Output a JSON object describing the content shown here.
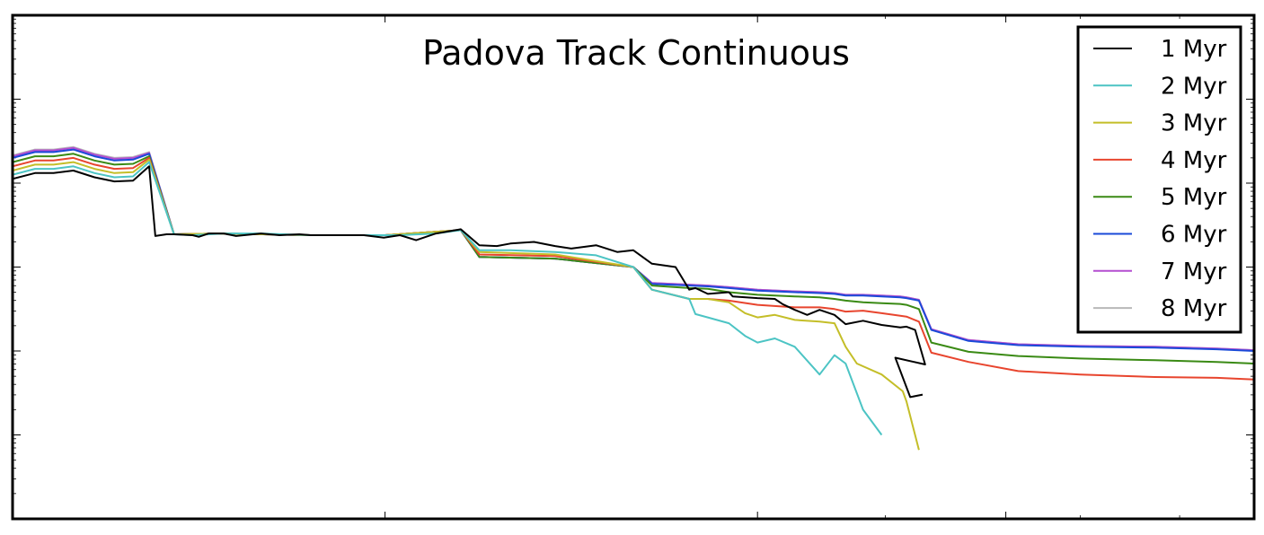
{
  "chart_data": {
    "type": "line",
    "title": "Padova Track Continuous",
    "xlabel": "",
    "ylabel": "",
    "yscale": "log",
    "ylim_decades": [
      0,
      6
    ],
    "xlim": [
      0,
      1
    ],
    "grid": false,
    "legend_position": "top-right",
    "series": [
      {
        "name": "1 Myr",
        "color": "#000000",
        "x": [
          0.0,
          0.018,
          0.033,
          0.049,
          0.066,
          0.082,
          0.097,
          0.11,
          0.115,
          0.124,
          0.13,
          0.145,
          0.15,
          0.158,
          0.17,
          0.18,
          0.2,
          0.215,
          0.231,
          0.24,
          0.25,
          0.283,
          0.299,
          0.312,
          0.325,
          0.341,
          0.361,
          0.376,
          0.39,
          0.401,
          0.42,
          0.437,
          0.45,
          0.47,
          0.487,
          0.5,
          0.515,
          0.534,
          0.545,
          0.55,
          0.56,
          0.577,
          0.58,
          0.6,
          0.614,
          0.62,
          0.63,
          0.64,
          0.65,
          0.662,
          0.671,
          0.685,
          0.7,
          0.715,
          0.72,
          0.727,
          0.735,
          0.711,
          0.723,
          0.733
        ],
        "y": [
          4.05,
          4.12,
          4.12,
          4.15,
          4.07,
          4.02,
          4.03,
          4.2,
          3.37,
          3.39,
          3.39,
          3.38,
          3.36,
          3.4,
          3.4,
          3.37,
          3.4,
          3.38,
          3.39,
          3.38,
          3.38,
          3.38,
          3.35,
          3.38,
          3.32,
          3.4,
          3.45,
          3.26,
          3.25,
          3.28,
          3.3,
          3.25,
          3.22,
          3.26,
          3.18,
          3.2,
          3.04,
          3.0,
          2.73,
          2.75,
          2.68,
          2.7,
          2.65,
          2.63,
          2.62,
          2.56,
          2.49,
          2.43,
          2.49,
          2.43,
          2.32,
          2.36,
          2.31,
          2.28,
          2.29,
          2.25,
          1.84,
          1.92,
          1.45,
          1.48
        ],
        "_note": ""
      },
      {
        "name": "2 Myr",
        "color": "#4cc4c4",
        "x": [
          0.0,
          0.018,
          0.033,
          0.049,
          0.066,
          0.082,
          0.097,
          0.11,
          0.13,
          0.145,
          0.17,
          0.2,
          0.24,
          0.283,
          0.312,
          0.341,
          0.361,
          0.376,
          0.401,
          0.437,
          0.47,
          0.5,
          0.515,
          0.545,
          0.55,
          0.56,
          0.577,
          0.59,
          0.6,
          0.614,
          0.63,
          0.65,
          0.662,
          0.671,
          0.685,
          0.7
        ],
        "y": [
          4.1,
          4.17,
          4.17,
          4.2,
          4.12,
          4.07,
          4.08,
          4.25,
          3.39,
          3.38,
          3.4,
          3.4,
          3.38,
          3.38,
          3.38,
          3.4,
          3.44,
          3.2,
          3.2,
          3.18,
          3.14,
          3.0,
          2.73,
          2.62,
          2.44,
          2.4,
          2.33,
          2.18,
          2.1,
          2.15,
          2.05,
          1.72,
          1.95,
          1.85,
          1.3,
          1.0
        ],
        "_note": ""
      },
      {
        "name": "3 Myr",
        "color": "#c4be28",
        "x": [
          0.0,
          0.018,
          0.033,
          0.049,
          0.066,
          0.082,
          0.097,
          0.11,
          0.13,
          0.17,
          0.24,
          0.3,
          0.361,
          0.376,
          0.437,
          0.5,
          0.515,
          0.545,
          0.56,
          0.577,
          0.59,
          0.6,
          0.614,
          0.63,
          0.65,
          0.662,
          0.671,
          0.68,
          0.7,
          0.717,
          0.72,
          0.73
        ],
        "y": [
          4.15,
          4.22,
          4.22,
          4.25,
          4.17,
          4.12,
          4.13,
          4.28,
          3.39,
          3.4,
          3.38,
          3.38,
          3.44,
          3.18,
          3.15,
          3.0,
          2.73,
          2.62,
          2.62,
          2.58,
          2.45,
          2.4,
          2.43,
          2.37,
          2.35,
          2.33,
          2.05,
          1.85,
          1.72,
          1.52,
          1.4,
          0.82
        ],
        "_note": ""
      },
      {
        "name": "4 Myr",
        "color": "#e8452e",
        "x": [
          0.0,
          0.018,
          0.033,
          0.049,
          0.066,
          0.082,
          0.097,
          0.11,
          0.13,
          0.17,
          0.24,
          0.3,
          0.361,
          0.376,
          0.437,
          0.5,
          0.515,
          0.545,
          0.56,
          0.577,
          0.6,
          0.63,
          0.65,
          0.662,
          0.671,
          0.685,
          0.7,
          0.715,
          0.72,
          0.73,
          0.74,
          0.77,
          0.81,
          0.86,
          0.92,
          0.97,
          1.0
        ],
        "y": [
          4.2,
          4.27,
          4.27,
          4.3,
          4.22,
          4.17,
          4.18,
          4.3,
          3.39,
          3.4,
          3.38,
          3.38,
          3.44,
          3.15,
          3.13,
          3.0,
          2.73,
          2.62,
          2.62,
          2.6,
          2.55,
          2.52,
          2.52,
          2.5,
          2.47,
          2.48,
          2.45,
          2.42,
          2.41,
          2.35,
          1.98,
          1.87,
          1.76,
          1.72,
          1.69,
          1.68,
          1.66
        ],
        "_note": ""
      },
      {
        "name": "5 Myr",
        "color": "#3a8a14",
        "x": [
          0.0,
          0.018,
          0.033,
          0.049,
          0.066,
          0.082,
          0.097,
          0.11,
          0.13,
          0.17,
          0.24,
          0.3,
          0.361,
          0.376,
          0.437,
          0.5,
          0.515,
          0.545,
          0.56,
          0.577,
          0.6,
          0.63,
          0.65,
          0.662,
          0.671,
          0.685,
          0.7,
          0.715,
          0.72,
          0.73,
          0.74,
          0.77,
          0.81,
          0.86,
          0.92,
          0.97,
          1.0
        ],
        "y": [
          4.25,
          4.32,
          4.32,
          4.35,
          4.27,
          4.22,
          4.23,
          4.32,
          3.39,
          3.4,
          3.38,
          3.38,
          3.44,
          3.12,
          3.1,
          3.0,
          2.78,
          2.75,
          2.74,
          2.7,
          2.67,
          2.65,
          2.64,
          2.62,
          2.6,
          2.58,
          2.57,
          2.56,
          2.55,
          2.5,
          2.1,
          1.99,
          1.94,
          1.91,
          1.89,
          1.87,
          1.85
        ],
        "_note": ""
      },
      {
        "name": "6 Myr",
        "color": "#1a4ad8",
        "x": [
          0.0,
          0.018,
          0.033,
          0.049,
          0.066,
          0.082,
          0.097,
          0.11,
          0.13,
          0.17,
          0.24,
          0.3,
          0.361,
          0.376,
          0.437,
          0.5,
          0.515,
          0.545,
          0.56,
          0.577,
          0.6,
          0.63,
          0.65,
          0.662,
          0.671,
          0.685,
          0.7,
          0.715,
          0.72,
          0.73,
          0.74,
          0.77,
          0.81,
          0.86,
          0.92,
          0.97,
          1.0
        ],
        "y": [
          4.3,
          4.37,
          4.37,
          4.4,
          4.32,
          4.27,
          4.28,
          4.35,
          3.39,
          3.4,
          3.38,
          3.38,
          3.44,
          3.12,
          3.1,
          3.0,
          2.8,
          2.78,
          2.77,
          2.75,
          2.72,
          2.7,
          2.69,
          2.68,
          2.66,
          2.66,
          2.65,
          2.64,
          2.63,
          2.6,
          2.25,
          2.12,
          2.07,
          2.05,
          2.04,
          2.02,
          2.0
        ],
        "_note": ""
      },
      {
        "name": "7 Myr",
        "color": "#b44ed0",
        "x": [
          0.0,
          0.018,
          0.033,
          0.049,
          0.066,
          0.082,
          0.097,
          0.11,
          0.13,
          0.17,
          0.24,
          0.3,
          0.361,
          0.376,
          0.437,
          0.5,
          0.515,
          0.545,
          0.56,
          0.577,
          0.6,
          0.63,
          0.65,
          0.662,
          0.671,
          0.685,
          0.7,
          0.715,
          0.72,
          0.73,
          0.74,
          0.77,
          0.81,
          0.86,
          0.92,
          0.97,
          1.0
        ],
        "y": [
          4.32,
          4.39,
          4.39,
          4.42,
          4.34,
          4.29,
          4.3,
          4.36,
          3.39,
          3.4,
          3.38,
          3.38,
          3.44,
          3.12,
          3.1,
          3.0,
          2.81,
          2.79,
          2.78,
          2.76,
          2.73,
          2.71,
          2.7,
          2.69,
          2.67,
          2.67,
          2.66,
          2.65,
          2.64,
          2.61,
          2.26,
          2.13,
          2.08,
          2.06,
          2.05,
          2.03,
          2.01
        ],
        "_note": ""
      },
      {
        "name": "8 Myr",
        "color": "#b8b8b8",
        "x": [
          0.0,
          0.018,
          0.033,
          0.049,
          0.066,
          0.082,
          0.097,
          0.11,
          0.13,
          0.17,
          0.24,
          0.3,
          0.361,
          0.376,
          0.437,
          0.5,
          0.515,
          0.545,
          0.56,
          0.577,
          0.6,
          0.63,
          0.65,
          0.662,
          0.671,
          0.685,
          0.7,
          0.715,
          0.72,
          0.73,
          0.74,
          0.77,
          0.81,
          0.86,
          0.92,
          0.97,
          1.0
        ],
        "y": [
          4.33,
          4.4,
          4.4,
          4.43,
          4.35,
          4.3,
          4.31,
          4.37,
          3.39,
          3.4,
          3.38,
          3.38,
          3.44,
          3.12,
          3.1,
          3.0,
          2.81,
          2.79,
          2.78,
          2.76,
          2.73,
          2.71,
          2.7,
          2.69,
          2.67,
          2.67,
          2.66,
          2.65,
          2.64,
          2.61,
          2.26,
          2.13,
          2.08,
          2.06,
          2.05,
          2.03,
          2.01
        ],
        "_note": ""
      }
    ]
  }
}
